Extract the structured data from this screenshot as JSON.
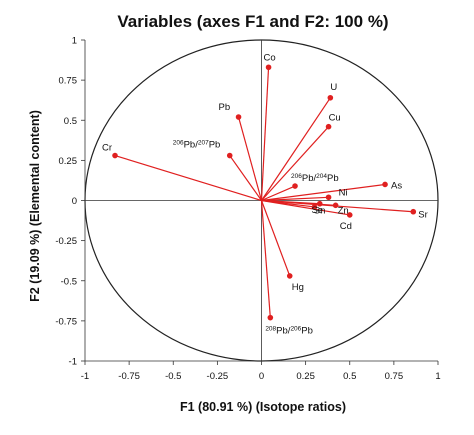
{
  "chart_data": {
    "type": "scatter",
    "subtype": "correlation-circle",
    "title": "Variables (axes F1 and F2: 100 %)",
    "xlabel": "F1 (80.91 %) (Isotope ratios)",
    "ylabel": "F2 (19.09 %) (Elemental content)",
    "xlim": [
      -1,
      1
    ],
    "ylim": [
      -1,
      1
    ],
    "x_ticks": [
      "-1",
      "-0.75",
      "-0.5",
      "-0.25",
      "0",
      "0.25",
      "0.5",
      "0.75",
      "1"
    ],
    "y_ticks": [
      "1",
      "0.75",
      "0.5",
      "0.25",
      "0",
      "-0.25",
      "-0.5",
      "-0.75",
      "-1"
    ],
    "grid": false,
    "circle": true,
    "vector_color": "#e02020",
    "vectors": [
      {
        "label": "Co",
        "x": 0.04,
        "y": 0.83
      },
      {
        "label": "U",
        "x": 0.39,
        "y": 0.64
      },
      {
        "label": "Cu",
        "x": 0.38,
        "y": 0.46
      },
      {
        "label": "Pb",
        "x": -0.13,
        "y": 0.52
      },
      {
        "label": "Cr",
        "x": -0.83,
        "y": 0.28
      },
      {
        "label": "As",
        "x": 0.7,
        "y": 0.1
      },
      {
        "label": "Sr",
        "x": 0.86,
        "y": -0.07
      },
      {
        "label": "Ni",
        "x": 0.38,
        "y": 0.02
      },
      {
        "label": "Cd",
        "x": 0.5,
        "y": -0.09
      },
      {
        "label": "Hg",
        "x": 0.16,
        "y": -0.47
      },
      {
        "label": "208Pb/206Pb",
        "x": 0.05,
        "y": -0.73
      },
      {
        "label": "206Pb/207Pb",
        "x": -0.18,
        "y": 0.28
      },
      {
        "label": "206Pb/204Pb",
        "x": 0.19,
        "y": 0.09
      },
      {
        "label": "Sn",
        "x": 0.33,
        "y": -0.02
      },
      {
        "label": "Se",
        "x": 0.3,
        "y": -0.04
      },
      {
        "label": "Zn",
        "x": 0.42,
        "y": -0.03
      }
    ]
  }
}
